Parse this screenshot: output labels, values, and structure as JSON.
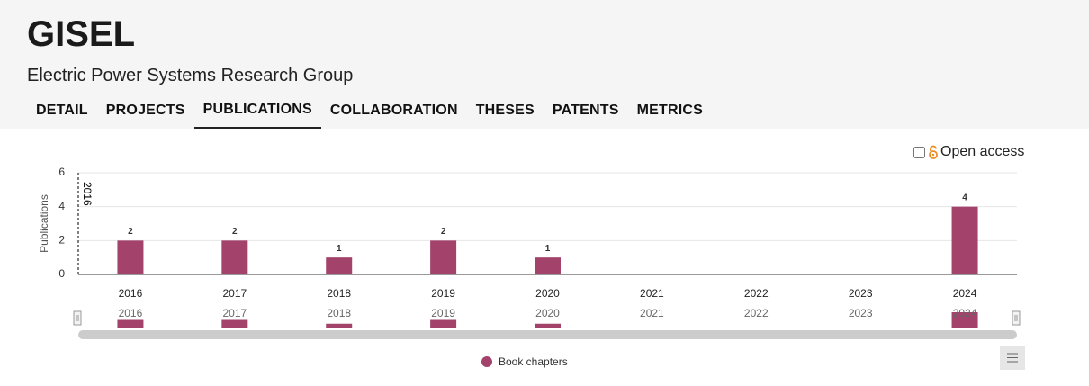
{
  "header": {
    "title": "GISEL",
    "subtitle": "Electric Power Systems Research Group"
  },
  "tabs": [
    "DETAIL",
    "PROJECTS",
    "PUBLICATIONS",
    "COLLABORATION",
    "THESES",
    "PATENTS",
    "METRICS"
  ],
  "active_tab": 2,
  "filter": {
    "label": "Open access",
    "checked": false
  },
  "chart_data": {
    "type": "bar",
    "y_label": "Publications",
    "annotation": "2016",
    "categories": [
      "2016",
      "2017",
      "2018",
      "2019",
      "2020",
      "2021",
      "2022",
      "2023",
      "2024"
    ],
    "series": [
      {
        "name": "Book chapters",
        "color": "#a3436b",
        "values": [
          2,
          2,
          1,
          2,
          1,
          null,
          null,
          null,
          4
        ]
      }
    ],
    "ylim": [
      0,
      6
    ],
    "yticks": [
      0,
      2,
      4,
      6
    ],
    "grid": true
  }
}
